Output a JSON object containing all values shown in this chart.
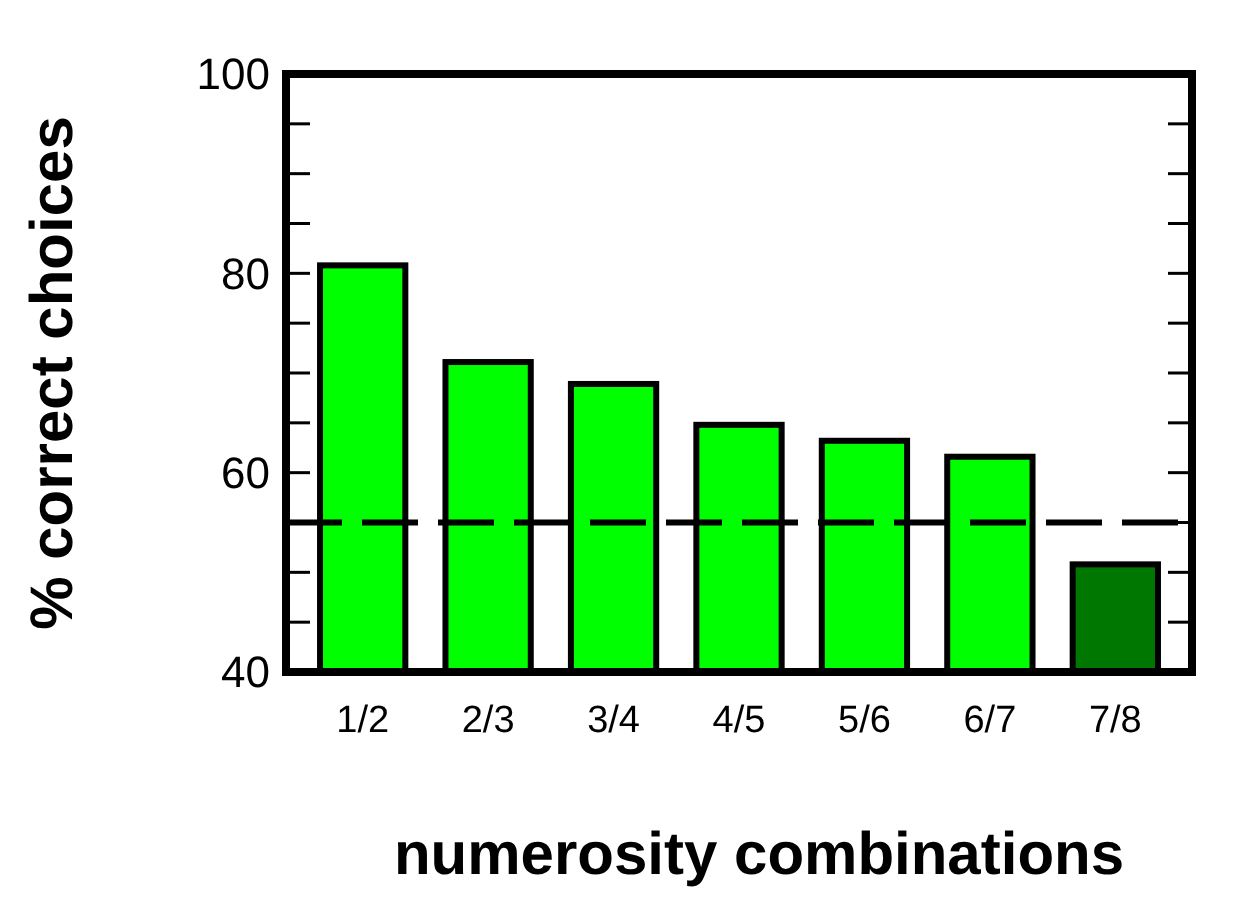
{
  "chart_data": {
    "type": "bar",
    "xlabel": "numerosity combinations",
    "ylabel": "% correct choices",
    "categories": [
      "1/2",
      "2/3",
      "3/4",
      "4/5",
      "5/6",
      "6/7",
      "7/8"
    ],
    "values": [
      80.8,
      71.1,
      68.9,
      64.8,
      63.2,
      61.6,
      50.8
    ],
    "colors": [
      "#00ff00",
      "#00ff00",
      "#00ff00",
      "#00ff00",
      "#00ff00",
      "#00ff00",
      "#007700"
    ],
    "ylim": [
      40,
      100
    ],
    "yticks": [
      40,
      {
        "value": 45,
        "label": null
      },
      {
        "value": 50,
        "label": null
      },
      {
        "value": 55,
        "label": null
      },
      60,
      {
        "value": 65,
        "label": null
      },
      {
        "value": 70,
        "label": null
      },
      {
        "value": 75,
        "label": null
      },
      80,
      {
        "value": 85,
        "label": null
      },
      {
        "value": 90,
        "label": null
      },
      {
        "value": 95,
        "label": null
      },
      100
    ],
    "ref_lines": [
      {
        "axis": "y",
        "value": 55,
        "line_style": "dashed",
        "color": "#000000"
      }
    ],
    "grid": false
  }
}
